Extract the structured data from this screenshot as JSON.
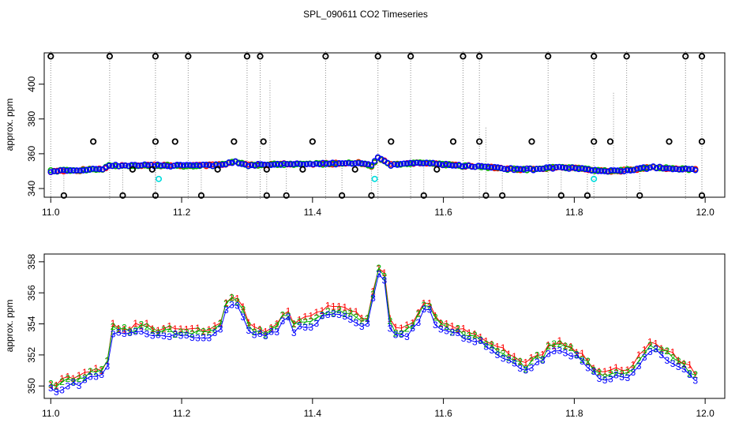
{
  "figure": {
    "title": "SPL_090611  CO2 Timeseries"
  },
  "colors": {
    "series1": "#ff0000",
    "series2": "#00b000",
    "series3": "#0000ff",
    "cyan": "#00dddd",
    "spike": "#8c8c8c"
  },
  "chart_data": [
    {
      "type": "scatter",
      "panel": "top",
      "title": "SPL_090611  CO2 Timeseries",
      "xlabel": "",
      "ylabel": "approx. ppm",
      "xlim": [
        10.99,
        12.03
      ],
      "ylim": [
        335,
        418
      ],
      "xticks": [
        11.0,
        11.2,
        11.4,
        11.6,
        11.8,
        12.0
      ],
      "xtick_labels": [
        "11.0",
        "11.2",
        "11.4",
        "11.6",
        "11.8",
        "12.0"
      ],
      "yticks": [
        340,
        360,
        380,
        400
      ],
      "ytick_labels": [
        "340",
        "360",
        "380",
        "400"
      ],
      "marker": "open-circle",
      "baseline_profile": [
        [
          11.0,
          350.0
        ],
        [
          11.03,
          350.3
        ],
        [
          11.06,
          350.8
        ],
        [
          11.08,
          351.3
        ],
        [
          11.09,
          353.3
        ],
        [
          11.14,
          353.4
        ],
        [
          11.2,
          353.1
        ],
        [
          11.26,
          353.5
        ],
        [
          11.28,
          355.5
        ],
        [
          11.3,
          353.4
        ],
        [
          11.36,
          354.0
        ],
        [
          11.42,
          354.2
        ],
        [
          11.47,
          354.8
        ],
        [
          11.49,
          353.0
        ],
        [
          11.5,
          357.8
        ],
        [
          11.52,
          353.5
        ],
        [
          11.57,
          354.8
        ],
        [
          11.62,
          353.2
        ],
        [
          11.66,
          352.6
        ],
        [
          11.7,
          351.2
        ],
        [
          11.74,
          351.0
        ],
        [
          11.77,
          352.1
        ],
        [
          11.8,
          351.8
        ],
        [
          11.84,
          350.0
        ],
        [
          11.87,
          350.2
        ],
        [
          11.92,
          352.2
        ],
        [
          11.98,
          350.8
        ]
      ],
      "high_spikes": [
        11.0,
        11.09,
        11.16,
        11.21,
        11.3,
        11.32,
        11.42,
        11.5,
        11.55,
        11.63,
        11.655,
        11.76,
        11.83,
        11.88,
        11.97,
        11.995
      ],
      "high_value": 416,
      "low_spikes": [
        11.02,
        11.11,
        11.16,
        11.23,
        11.33,
        11.36,
        11.445,
        11.49,
        11.57,
        11.665,
        11.69,
        11.78,
        11.82,
        11.9,
        11.995
      ],
      "low_value": 336,
      "mid_points": [
        {
          "x": 11.065,
          "y": 367
        },
        {
          "x": 11.16,
          "y": 367
        },
        {
          "x": 11.19,
          "y": 367
        },
        {
          "x": 11.28,
          "y": 367
        },
        {
          "x": 11.325,
          "y": 367
        },
        {
          "x": 11.4,
          "y": 367
        },
        {
          "x": 11.52,
          "y": 367
        },
        {
          "x": 11.615,
          "y": 367
        },
        {
          "x": 11.655,
          "y": 367
        },
        {
          "x": 11.735,
          "y": 367
        },
        {
          "x": 11.83,
          "y": 367
        },
        {
          "x": 11.855,
          "y": 367
        },
        {
          "x": 11.945,
          "y": 367
        },
        {
          "x": 11.995,
          "y": 367
        },
        {
          "x": 11.125,
          "y": 351
        },
        {
          "x": 11.255,
          "y": 351
        },
        {
          "x": 11.385,
          "y": 351
        },
        {
          "x": 11.465,
          "y": 351
        },
        {
          "x": 11.59,
          "y": 351
        },
        {
          "x": 11.155,
          "y": 351
        },
        {
          "x": 11.33,
          "y": 351
        }
      ],
      "cyan_points": [
        {
          "x": 11.165,
          "y": 345.5
        },
        {
          "x": 11.495,
          "y": 345.5
        },
        {
          "x": 11.83,
          "y": 345.5
        }
      ],
      "faint_verticals": [
        {
          "x": 11.335,
          "y": 402
        },
        {
          "x": 11.665,
          "y": 375
        },
        {
          "x": 11.86,
          "y": 395
        }
      ]
    },
    {
      "type": "line",
      "panel": "bottom",
      "xlabel": "",
      "ylabel": "approx. ppm",
      "xlim": [
        10.99,
        12.03
      ],
      "ylim": [
        349.2,
        358.5
      ],
      "xticks": [
        11.0,
        11.2,
        11.4,
        11.6,
        11.8,
        12.0
      ],
      "xtick_labels": [
        "11.0",
        "11.2",
        "11.4",
        "11.6",
        "11.8",
        "12.0"
      ],
      "yticks": [
        350,
        352,
        354,
        356,
        358
      ],
      "ytick_labels": [
        "350",
        "352",
        "354",
        "356",
        "358"
      ],
      "x_range": [
        11.0,
        11.985
      ],
      "profile": [
        [
          11.0,
          350.0
        ],
        [
          11.01,
          349.9
        ],
        [
          11.02,
          350.2
        ],
        [
          11.03,
          350.4
        ],
        [
          11.04,
          350.3
        ],
        [
          11.05,
          350.6
        ],
        [
          11.06,
          350.8
        ],
        [
          11.07,
          350.9
        ],
        [
          11.08,
          350.9
        ],
        [
          11.085,
          351.1
        ],
        [
          11.09,
          352.2
        ],
        [
          11.095,
          353.7
        ],
        [
          11.1,
          353.6
        ],
        [
          11.12,
          353.5
        ],
        [
          11.14,
          353.8
        ],
        [
          11.15,
          353.5
        ],
        [
          11.16,
          353.5
        ],
        [
          11.2,
          353.4
        ],
        [
          11.24,
          353.4
        ],
        [
          11.26,
          353.9
        ],
        [
          11.27,
          355.6
        ],
        [
          11.28,
          355.4
        ],
        [
          11.29,
          355.3
        ],
        [
          11.3,
          354.0
        ],
        [
          11.31,
          353.5
        ],
        [
          11.33,
          353.4
        ],
        [
          11.35,
          353.9
        ],
        [
          11.36,
          355.0
        ],
        [
          11.365,
          354.2
        ],
        [
          11.37,
          353.8
        ],
        [
          11.4,
          354.2
        ],
        [
          11.42,
          354.8
        ],
        [
          11.44,
          354.8
        ],
        [
          11.46,
          354.6
        ],
        [
          11.47,
          354.3
        ],
        [
          11.48,
          353.7
        ],
        [
          11.49,
          355.0
        ],
        [
          11.495,
          356.5
        ],
        [
          11.5,
          357.6
        ],
        [
          11.505,
          357.1
        ],
        [
          11.51,
          356.9
        ],
        [
          11.52,
          353.6
        ],
        [
          11.53,
          353.3
        ],
        [
          11.55,
          353.6
        ],
        [
          11.57,
          355.1
        ],
        [
          11.58,
          355.0
        ],
        [
          11.59,
          354.0
        ],
        [
          11.6,
          353.7
        ],
        [
          11.63,
          353.4
        ],
        [
          11.66,
          353.0
        ],
        [
          11.67,
          352.6
        ],
        [
          11.7,
          351.8
        ],
        [
          11.73,
          351.1
        ],
        [
          11.74,
          351.8
        ],
        [
          11.75,
          351.6
        ],
        [
          11.76,
          352.4
        ],
        [
          11.78,
          352.6
        ],
        [
          11.8,
          352.2
        ],
        [
          11.82,
          351.4
        ],
        [
          11.84,
          350.6
        ],
        [
          11.86,
          350.9
        ],
        [
          11.87,
          350.6
        ],
        [
          11.89,
          351.1
        ],
        [
          11.91,
          352.4
        ],
        [
          11.92,
          352.6
        ],
        [
          11.94,
          352.1
        ],
        [
          11.96,
          351.5
        ],
        [
          11.98,
          350.8
        ],
        [
          11.985,
          350.6
        ]
      ],
      "series": [
        {
          "name": "1",
          "label": "1",
          "color": "#ff0000",
          "offset": 0.25
        },
        {
          "name": "2",
          "label": "2",
          "color": "#00b000",
          "offset": 0.05
        },
        {
          "name": "3",
          "label": "3",
          "color": "#0000ff",
          "offset": -0.25
        }
      ]
    }
  ]
}
